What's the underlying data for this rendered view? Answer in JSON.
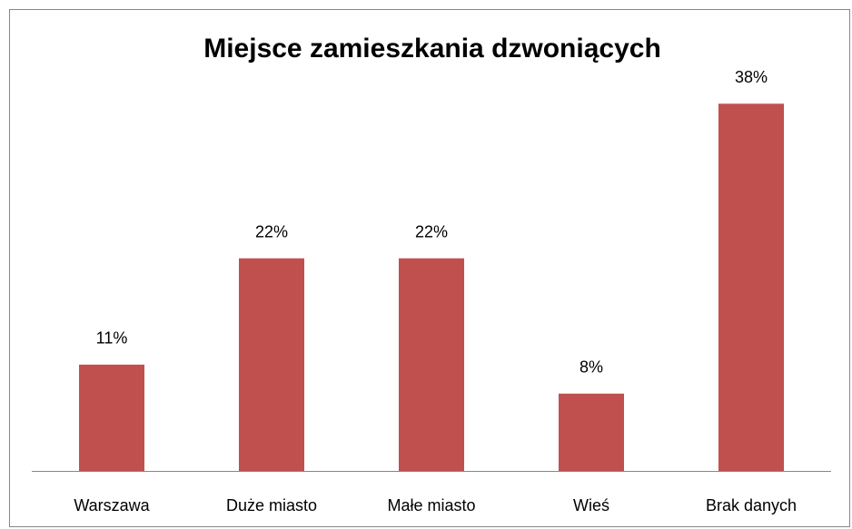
{
  "chart_data": {
    "type": "bar",
    "title": "Miejsce zamieszkania dzwoniących",
    "categories": [
      "Warszawa",
      "Duże miasto",
      "Małe miasto",
      "Wieś",
      "Brak danych"
    ],
    "values": [
      11,
      22,
      22,
      8,
      38
    ],
    "value_labels": [
      "11%",
      "22%",
      "22%",
      "8%",
      "38%"
    ],
    "color": "#c0504d",
    "ylim": [
      0,
      40
    ]
  }
}
